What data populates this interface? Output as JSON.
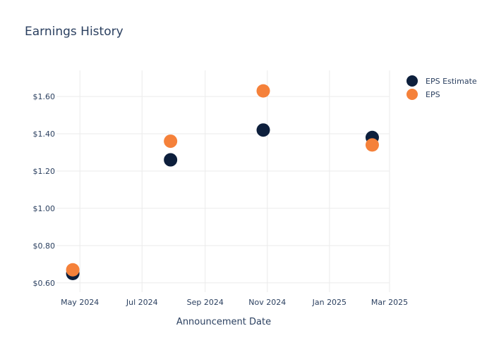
{
  "chart_data": {
    "type": "scatter",
    "title": "Earnings History",
    "xlabel": "Announcement Date",
    "ylabel": "",
    "x_ticks": [
      {
        "date": "2024-05-01",
        "label": "May 2024"
      },
      {
        "date": "2024-07-01",
        "label": "Jul 2024"
      },
      {
        "date": "2024-09-01",
        "label": "Sep 2024"
      },
      {
        "date": "2024-11-01",
        "label": "Nov 2024"
      },
      {
        "date": "2025-01-01",
        "label": "Jan 2025"
      },
      {
        "date": "2025-03-01",
        "label": "Mar 2025"
      }
    ],
    "y_ticks": [
      {
        "value": 0.6,
        "label": "$0.60"
      },
      {
        "value": 0.8,
        "label": "$0.80"
      },
      {
        "value": 1.0,
        "label": "$1.00"
      },
      {
        "value": 1.2,
        "label": "$1.20"
      },
      {
        "value": 1.4,
        "label": "$1.40"
      },
      {
        "value": 1.6,
        "label": "$1.60"
      }
    ],
    "xlim": [
      "2024-04-08",
      "2025-03-01"
    ],
    "ylim": [
      0.55,
      1.74
    ],
    "grid": true,
    "legend_position": "top-right",
    "series": [
      {
        "name": "EPS Estimate",
        "color": "#0d1f3c",
        "points": [
          {
            "x": "2024-04-24",
            "y": 0.65
          },
          {
            "x": "2024-07-29",
            "y": 1.26
          },
          {
            "x": "2024-10-28",
            "y": 1.42
          },
          {
            "x": "2025-02-12",
            "y": 1.38
          }
        ]
      },
      {
        "name": "EPS",
        "color": "#f5813a",
        "points": [
          {
            "x": "2024-04-24",
            "y": 0.67
          },
          {
            "x": "2024-07-29",
            "y": 1.36
          },
          {
            "x": "2024-10-28",
            "y": 1.63
          },
          {
            "x": "2025-02-12",
            "y": 1.34
          }
        ]
      }
    ]
  }
}
